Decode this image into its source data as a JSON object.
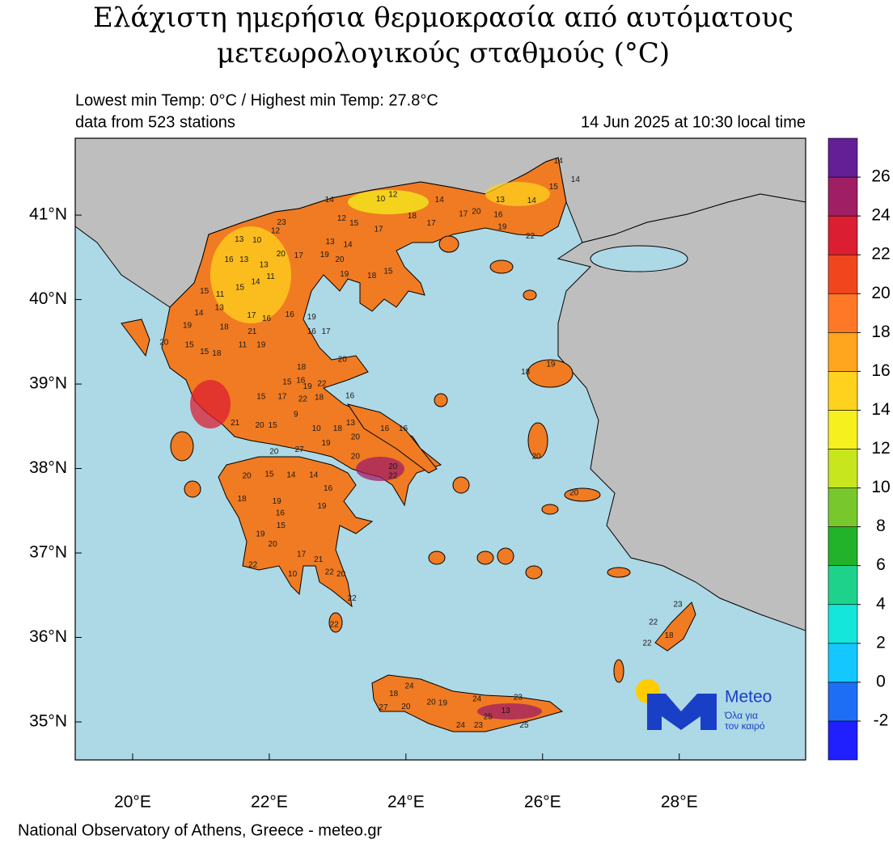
{
  "title": [
    "Ελάχιστη ημερήσια θερμοκρασία από αυτόματους",
    "μετεωρολογικούς σταθμούς (°C)"
  ],
  "subtitle": [
    "Lowest min Temp: 0°C / Highest min Temp: 27.8°C",
    "data from 523 stations"
  ],
  "date": "14 Jun 2025 at 10:30 local time",
  "footer": "National Observatory of Athens, Greece - meteo.gr",
  "logo": {
    "name": "Meteo",
    "slogan": [
      "Όλα για",
      "τον καιρό"
    ]
  },
  "map": {
    "xlim": [
      19.16,
      29.85
    ],
    "ylim": [
      34.55,
      41.91
    ],
    "xticks": [
      {
        "value": 20,
        "label": "20°E"
      },
      {
        "value": 22,
        "label": "22°E"
      },
      {
        "value": 24,
        "label": "24°E"
      },
      {
        "value": 26,
        "label": "26°E"
      },
      {
        "value": 28,
        "label": "28°E"
      }
    ],
    "yticks": [
      {
        "value": 35,
        "label": "35°N"
      },
      {
        "value": 36,
        "label": "36°N"
      },
      {
        "value": 37,
        "label": "37°N"
      },
      {
        "value": 38,
        "label": "38°N"
      },
      {
        "value": 39,
        "label": "39°N"
      },
      {
        "value": 40,
        "label": "40°N"
      },
      {
        "value": 41,
        "label": "41°N"
      }
    ],
    "stations": [
      {
        "lon": 26.23,
        "lat": 41.64,
        "value": 14
      },
      {
        "lon": 26.48,
        "lat": 41.42,
        "value": 14
      },
      {
        "lon": 26.16,
        "lat": 41.33,
        "value": 15
      },
      {
        "lon": 25.38,
        "lat": 41.18,
        "value": 13
      },
      {
        "lon": 25.84,
        "lat": 41.17,
        "value": 14
      },
      {
        "lon": 24.49,
        "lat": 41.18,
        "value": 14
      },
      {
        "lon": 23.81,
        "lat": 41.24,
        "value": 12
      },
      {
        "lon": 23.63,
        "lat": 41.19,
        "value": 10
      },
      {
        "lon": 22.88,
        "lat": 41.18,
        "value": 14
      },
      {
        "lon": 22.18,
        "lat": 40.91,
        "value": 23
      },
      {
        "lon": 23.06,
        "lat": 40.96,
        "value": 12
      },
      {
        "lon": 23.24,
        "lat": 40.9,
        "value": 15
      },
      {
        "lon": 24.09,
        "lat": 40.99,
        "value": 18
      },
      {
        "lon": 24.37,
        "lat": 40.9,
        "value": 17
      },
      {
        "lon": 24.84,
        "lat": 41.01,
        "value": 17
      },
      {
        "lon": 25.35,
        "lat": 41.0,
        "value": 16
      },
      {
        "lon": 25.41,
        "lat": 40.86,
        "value": 19
      },
      {
        "lon": 25.03,
        "lat": 41.04,
        "value": 20
      },
      {
        "lon": 25.82,
        "lat": 40.75,
        "value": 22
      },
      {
        "lon": 21.56,
        "lat": 40.71,
        "value": 13
      },
      {
        "lon": 21.82,
        "lat": 40.7,
        "value": 10
      },
      {
        "lon": 22.09,
        "lat": 40.81,
        "value": 12
      },
      {
        "lon": 22.89,
        "lat": 40.68,
        "value": 13
      },
      {
        "lon": 23.15,
        "lat": 40.65,
        "value": 14
      },
      {
        "lon": 23.6,
        "lat": 40.83,
        "value": 17
      },
      {
        "lon": 22.17,
        "lat": 40.54,
        "value": 20
      },
      {
        "lon": 22.43,
        "lat": 40.52,
        "value": 17
      },
      {
        "lon": 22.81,
        "lat": 40.53,
        "value": 19
      },
      {
        "lon": 23.03,
        "lat": 40.47,
        "value": 20
      },
      {
        "lon": 23.1,
        "lat": 40.3,
        "value": 19
      },
      {
        "lon": 23.5,
        "lat": 40.28,
        "value": 18
      },
      {
        "lon": 23.74,
        "lat": 40.33,
        "value": 15
      },
      {
        "lon": 21.41,
        "lat": 40.47,
        "value": 16
      },
      {
        "lon": 21.63,
        "lat": 40.47,
        "value": 13
      },
      {
        "lon": 21.92,
        "lat": 40.41,
        "value": 13
      },
      {
        "lon": 21.8,
        "lat": 40.21,
        "value": 14
      },
      {
        "lon": 22.02,
        "lat": 40.27,
        "value": 11
      },
      {
        "lon": 21.57,
        "lat": 40.14,
        "value": 15
      },
      {
        "lon": 21.28,
        "lat": 40.06,
        "value": 11
      },
      {
        "lon": 21.05,
        "lat": 40.1,
        "value": 15
      },
      {
        "lon": 21.27,
        "lat": 39.9,
        "value": 13
      },
      {
        "lon": 20.97,
        "lat": 39.84,
        "value": 14
      },
      {
        "lon": 20.8,
        "lat": 39.69,
        "value": 19
      },
      {
        "lon": 21.34,
        "lat": 39.67,
        "value": 18
      },
      {
        "lon": 21.74,
        "lat": 39.81,
        "value": 17
      },
      {
        "lon": 21.96,
        "lat": 39.77,
        "value": 16
      },
      {
        "lon": 22.3,
        "lat": 39.82,
        "value": 16
      },
      {
        "lon": 22.62,
        "lat": 39.79,
        "value": 19
      },
      {
        "lon": 22.83,
        "lat": 39.62,
        "value": 17
      },
      {
        "lon": 22.62,
        "lat": 39.62,
        "value": 16
      },
      {
        "lon": 21.75,
        "lat": 39.62,
        "value": 21
      },
      {
        "lon": 21.88,
        "lat": 39.46,
        "value": 19
      },
      {
        "lon": 21.61,
        "lat": 39.46,
        "value": 11
      },
      {
        "lon": 21.23,
        "lat": 39.36,
        "value": 18
      },
      {
        "lon": 21.05,
        "lat": 39.38,
        "value": 15
      },
      {
        "lon": 20.83,
        "lat": 39.46,
        "value": 15
      },
      {
        "lon": 20.46,
        "lat": 39.49,
        "value": 20
      },
      {
        "lon": 23.07,
        "lat": 39.29,
        "value": 20
      },
      {
        "lon": 22.47,
        "lat": 39.2,
        "value": 18
      },
      {
        "lon": 22.26,
        "lat": 39.02,
        "value": 15
      },
      {
        "lon": 22.46,
        "lat": 39.04,
        "value": 16
      },
      {
        "lon": 22.56,
        "lat": 38.97,
        "value": 19
      },
      {
        "lon": 22.77,
        "lat": 39.0,
        "value": 22
      },
      {
        "lon": 22.19,
        "lat": 38.85,
        "value": 17
      },
      {
        "lon": 21.88,
        "lat": 38.85,
        "value": 15
      },
      {
        "lon": 22.49,
        "lat": 38.82,
        "value": 22
      },
      {
        "lon": 22.73,
        "lat": 38.84,
        "value": 18
      },
      {
        "lon": 23.18,
        "lat": 38.86,
        "value": 16
      },
      {
        "lon": 22.39,
        "lat": 38.64,
        "value": 9
      },
      {
        "lon": 22.69,
        "lat": 38.47,
        "value": 10
      },
      {
        "lon": 23.0,
        "lat": 38.47,
        "value": 18
      },
      {
        "lon": 23.19,
        "lat": 38.54,
        "value": 13
      },
      {
        "lon": 23.69,
        "lat": 38.47,
        "value": 16
      },
      {
        "lon": 23.96,
        "lat": 38.47,
        "value": 16
      },
      {
        "lon": 23.26,
        "lat": 38.37,
        "value": 20
      },
      {
        "lon": 21.5,
        "lat": 38.54,
        "value": 21
      },
      {
        "lon": 21.86,
        "lat": 38.51,
        "value": 20
      },
      {
        "lon": 22.05,
        "lat": 38.51,
        "value": 15
      },
      {
        "lon": 22.07,
        "lat": 38.2,
        "value": 20
      },
      {
        "lon": 22.44,
        "lat": 38.22,
        "value": 27
      },
      {
        "lon": 22.83,
        "lat": 38.3,
        "value": 19
      },
      {
        "lon": 23.26,
        "lat": 38.14,
        "value": 20
      },
      {
        "lon": 23.81,
        "lat": 38.02,
        "value": 20
      },
      {
        "lon": 23.81,
        "lat": 37.91,
        "value": 22
      },
      {
        "lon": 21.67,
        "lat": 37.91,
        "value": 20
      },
      {
        "lon": 22.0,
        "lat": 37.93,
        "value": 15
      },
      {
        "lon": 22.32,
        "lat": 37.92,
        "value": 14
      },
      {
        "lon": 22.65,
        "lat": 37.92,
        "value": 14
      },
      {
        "lon": 22.86,
        "lat": 37.76,
        "value": 16
      },
      {
        "lon": 21.6,
        "lat": 37.64,
        "value": 18
      },
      {
        "lon": 22.11,
        "lat": 37.61,
        "value": 19
      },
      {
        "lon": 22.16,
        "lat": 37.47,
        "value": 16
      },
      {
        "lon": 22.77,
        "lat": 37.55,
        "value": 19
      },
      {
        "lon": 22.17,
        "lat": 37.32,
        "value": 15
      },
      {
        "lon": 21.87,
        "lat": 37.22,
        "value": 19
      },
      {
        "lon": 22.05,
        "lat": 37.1,
        "value": 20
      },
      {
        "lon": 22.47,
        "lat": 36.98,
        "value": 17
      },
      {
        "lon": 22.72,
        "lat": 36.92,
        "value": 21
      },
      {
        "lon": 23.05,
        "lat": 36.75,
        "value": 20
      },
      {
        "lon": 23.21,
        "lat": 36.46,
        "value": 22
      },
      {
        "lon": 22.88,
        "lat": 36.77,
        "value": 22
      },
      {
        "lon": 21.76,
        "lat": 36.86,
        "value": 22
      },
      {
        "lon": 22.34,
        "lat": 36.75,
        "value": 10
      },
      {
        "lon": 22.95,
        "lat": 36.15,
        "value": 22
      },
      {
        "lon": 25.75,
        "lat": 39.14,
        "value": 18
      },
      {
        "lon": 26.12,
        "lat": 39.23,
        "value": 19
      },
      {
        "lon": 25.91,
        "lat": 38.14,
        "value": 20
      },
      {
        "lon": 27.98,
        "lat": 36.39,
        "value": 23
      },
      {
        "lon": 27.62,
        "lat": 36.18,
        "value": 22
      },
      {
        "lon": 27.85,
        "lat": 36.02,
        "value": 18
      },
      {
        "lon": 27.53,
        "lat": 35.93,
        "value": 22
      },
      {
        "lon": 26.46,
        "lat": 37.71,
        "value": 20
      },
      {
        "lon": 23.82,
        "lat": 35.33,
        "value": 18
      },
      {
        "lon": 24.05,
        "lat": 35.42,
        "value": 24
      },
      {
        "lon": 23.67,
        "lat": 35.17,
        "value": 27
      },
      {
        "lon": 24.0,
        "lat": 35.18,
        "value": 20
      },
      {
        "lon": 24.37,
        "lat": 35.23,
        "value": 20
      },
      {
        "lon": 24.54,
        "lat": 35.22,
        "value": 19
      },
      {
        "lon": 25.04,
        "lat": 35.27,
        "value": 24
      },
      {
        "lon": 25.2,
        "lat": 35.06,
        "value": 25
      },
      {
        "lon": 25.46,
        "lat": 35.13,
        "value": 13
      },
      {
        "lon": 25.64,
        "lat": 35.29,
        "value": 23
      },
      {
        "lon": 25.06,
        "lat": 34.96,
        "value": 23
      },
      {
        "lon": 24.8,
        "lat": 34.96,
        "value": 24
      },
      {
        "lon": 25.73,
        "lat": 34.96,
        "value": 25
      }
    ]
  },
  "colorbar": {
    "range": [
      -4,
      28
    ],
    "ticks": [
      -2,
      0,
      2,
      4,
      6,
      8,
      10,
      12,
      14,
      16,
      18,
      20,
      22,
      24,
      26
    ],
    "colors": [
      "#2020ff",
      "#1e6ef5",
      "#14c8ff",
      "#14e6dc",
      "#1ed28c",
      "#22b32a",
      "#78c82d",
      "#c8e61e",
      "#f5f01e",
      "#ffd21e",
      "#ffa51e",
      "#ff7828",
      "#f0461e",
      "#dc1e32",
      "#a01e64",
      "#641e96"
    ]
  }
}
